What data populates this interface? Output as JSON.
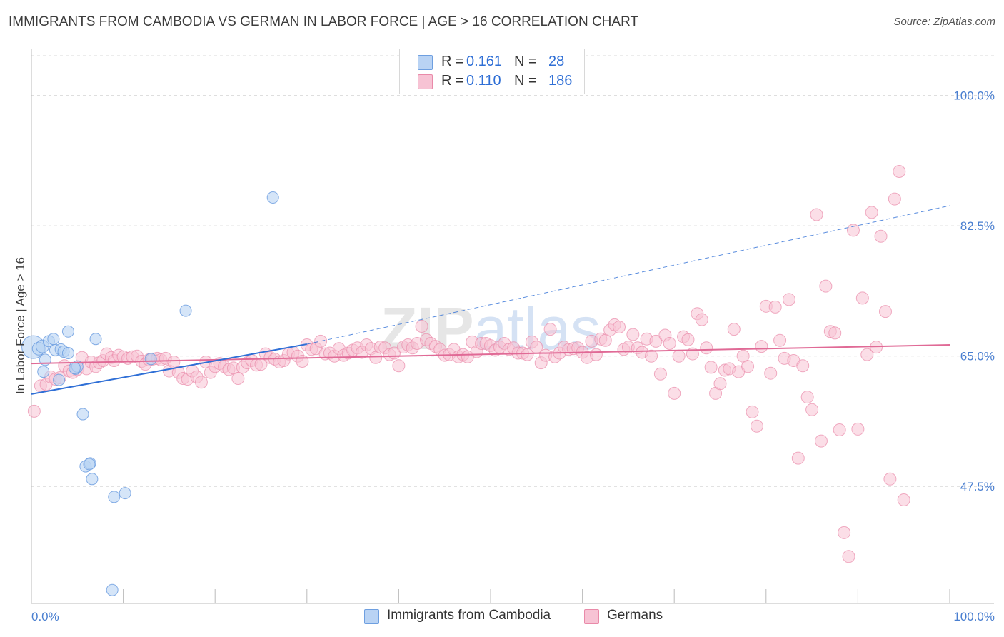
{
  "header": {
    "title": "IMMIGRANTS FROM CAMBODIA VS GERMAN IN LABOR FORCE | AGE > 16 CORRELATION CHART",
    "source": "Source: ZipAtlas.com"
  },
  "legend_top": {
    "rows": [
      {
        "r_label": "R =",
        "r_value": "0.161",
        "n_label": "N =",
        "n_value": "28"
      },
      {
        "r_label": "R =",
        "r_value": "0.110",
        "n_label": "N =",
        "n_value": "186"
      }
    ]
  },
  "legend_bottom": {
    "items": [
      "Immigrants from Cambodia",
      "Germans"
    ]
  },
  "colors": {
    "cambodia_fill": "#b9d3f4",
    "cambodia_stroke": "#6e9fe0",
    "cambodia_line": "#2f6fd6",
    "germans_fill": "#f7c3d4",
    "germans_stroke": "#e98aa9",
    "germans_line": "#e06a96",
    "tick_text": "#4a7fd0",
    "grid": "#d9d9d9"
  },
  "chart_data": {
    "type": "scatter",
    "title": "IMMIGRANTS FROM CAMBODIA VS GERMAN IN LABOR FORCE | AGE > 16 CORRELATION CHART",
    "ylabel": "In Labor Force | Age > 16",
    "xlabel": "",
    "xlim": [
      0,
      100
    ],
    "ylim": [
      31.8,
      106.1
    ],
    "y_ticks": [
      {
        "value": 100.0,
        "label": "100.0%"
      },
      {
        "value": 82.5,
        "label": "82.5%"
      },
      {
        "value": 65.0,
        "label": "65.0%"
      },
      {
        "value": 47.5,
        "label": "47.5%"
      }
    ],
    "x_tick_labels": [
      {
        "value": 0,
        "label": "0.0%"
      },
      {
        "value": 100,
        "label": "100.0%"
      }
    ],
    "grid": true,
    "legend_position": "top-center",
    "watermark": "ZIPatlas",
    "series": [
      {
        "name": "Immigrants from Cambodia",
        "r": 0.161,
        "n": 28,
        "trend": {
          "x0": 0.0,
          "y0": 59.9,
          "x1": 30.0,
          "y1": 66.6,
          "dashed_to_x": 100.0,
          "dashed_to_y": 85.2
        },
        "points": [
          [
            0.2,
            66.2,
            16
          ],
          [
            0.8,
            66.0,
            9
          ],
          [
            1.2,
            66.3,
            9
          ],
          [
            1.5,
            64.5,
            8
          ],
          [
            1.3,
            62.9,
            8
          ],
          [
            1.9,
            67.0,
            8
          ],
          [
            2.4,
            67.3,
            8
          ],
          [
            2.6,
            65.8,
            8
          ],
          [
            3.0,
            61.8,
            8
          ],
          [
            3.2,
            65.9,
            8
          ],
          [
            3.5,
            65.6,
            8
          ],
          [
            4.0,
            65.4,
            8
          ],
          [
            4.0,
            68.3,
            8
          ],
          [
            4.8,
            63.3,
            8
          ],
          [
            5.0,
            63.6,
            8
          ],
          [
            4.7,
            63.4,
            8
          ],
          [
            7.0,
            67.3,
            8
          ],
          [
            5.6,
            57.2,
            8
          ],
          [
            5.9,
            50.2,
            8
          ],
          [
            6.4,
            50.6,
            8
          ],
          [
            6.3,
            50.5,
            8
          ],
          [
            6.6,
            48.5,
            8
          ],
          [
            9.0,
            46.1,
            8
          ],
          [
            10.2,
            46.6,
            8
          ],
          [
            8.8,
            33.6,
            8
          ],
          [
            13.0,
            64.6,
            8
          ],
          [
            16.8,
            71.1,
            8
          ],
          [
            26.3,
            86.3,
            8
          ]
        ]
      },
      {
        "name": "Germans",
        "r": 0.11,
        "n": 186,
        "trend": {
          "x0": 0.0,
          "y0": 64.0,
          "x1": 100.0,
          "y1": 66.5
        },
        "points": [
          [
            0.3,
            57.6
          ],
          [
            1.0,
            61.0
          ],
          [
            1.6,
            61.2
          ],
          [
            2.1,
            62.2
          ],
          [
            2.6,
            61.9
          ],
          [
            3.1,
            62.1
          ],
          [
            3.6,
            63.7
          ],
          [
            4.1,
            63.0
          ],
          [
            4.5,
            62.8
          ],
          [
            5.0,
            63.2
          ],
          [
            5.5,
            64.8
          ],
          [
            6.0,
            63.3
          ],
          [
            6.5,
            64.2
          ],
          [
            7.0,
            63.6
          ],
          [
            7.4,
            64.1
          ],
          [
            7.8,
            64.4
          ],
          [
            8.2,
            65.3
          ],
          [
            8.7,
            64.8
          ],
          [
            9.0,
            64.4
          ],
          [
            9.5,
            65.1
          ],
          [
            10.0,
            64.9
          ],
          [
            10.5,
            64.7
          ],
          [
            11.0,
            64.9
          ],
          [
            11.5,
            65.0
          ],
          [
            12.0,
            64.3
          ],
          [
            12.4,
            63.9
          ],
          [
            12.8,
            64.5
          ],
          [
            13.2,
            64.6
          ],
          [
            13.7,
            64.7
          ],
          [
            14.1,
            64.5
          ],
          [
            14.6,
            64.7
          ],
          [
            15.0,
            63.0
          ],
          [
            15.5,
            64.2
          ],
          [
            16.0,
            62.8
          ],
          [
            16.5,
            62.0
          ],
          [
            17.0,
            61.9
          ],
          [
            17.5,
            63.0
          ],
          [
            18.0,
            62.2
          ],
          [
            18.5,
            61.5
          ],
          [
            19.0,
            64.2
          ],
          [
            19.5,
            62.8
          ],
          [
            20.0,
            63.6
          ],
          [
            20.5,
            64.0
          ],
          [
            21.0,
            63.6
          ],
          [
            21.5,
            63.2
          ],
          [
            22.0,
            63.4
          ],
          [
            22.5,
            62.0
          ],
          [
            23.0,
            63.5
          ],
          [
            23.5,
            64.1
          ],
          [
            24.0,
            64.4
          ],
          [
            24.5,
            63.8
          ],
          [
            25.0,
            63.9
          ],
          [
            25.5,
            65.3
          ],
          [
            26.0,
            64.8
          ],
          [
            26.5,
            64.6
          ],
          [
            27.0,
            64.2
          ],
          [
            27.5,
            64.4
          ],
          [
            28.0,
            65.3
          ],
          [
            28.5,
            65.5
          ],
          [
            29.0,
            65.0
          ],
          [
            29.5,
            64.3
          ],
          [
            30.0,
            66.5
          ],
          [
            30.5,
            65.9
          ],
          [
            31.0,
            66.0
          ],
          [
            31.5,
            67.0
          ],
          [
            32.0,
            65.3
          ],
          [
            32.5,
            65.4
          ],
          [
            33.0,
            65.0
          ],
          [
            33.5,
            66.0
          ],
          [
            34.0,
            65.1
          ],
          [
            34.5,
            65.4
          ],
          [
            35.0,
            65.8
          ],
          [
            35.5,
            66.1
          ],
          [
            36.0,
            65.5
          ],
          [
            36.5,
            66.5
          ],
          [
            37.0,
            66.0
          ],
          [
            37.5,
            64.8
          ],
          [
            38.0,
            66.2
          ],
          [
            38.5,
            66.1
          ],
          [
            39.0,
            65.2
          ],
          [
            39.5,
            65.4
          ],
          [
            40.0,
            63.7
          ],
          [
            40.5,
            66.2
          ],
          [
            41.0,
            66.5
          ],
          [
            41.5,
            66.1
          ],
          [
            42.0,
            66.7
          ],
          [
            42.5,
            69.0
          ],
          [
            43.0,
            67.2
          ],
          [
            43.5,
            66.7
          ],
          [
            44.0,
            66.3
          ],
          [
            44.5,
            65.9
          ],
          [
            45.0,
            65.1
          ],
          [
            45.5,
            65.2
          ],
          [
            46.0,
            65.9
          ],
          [
            46.5,
            64.9
          ],
          [
            47.0,
            65.2
          ],
          [
            47.5,
            64.9
          ],
          [
            48.0,
            66.9
          ],
          [
            48.5,
            65.6
          ],
          [
            49.0,
            66.7
          ],
          [
            49.5,
            66.7
          ],
          [
            50.0,
            66.4
          ],
          [
            50.5,
            65.8
          ],
          [
            51.0,
            66.2
          ],
          [
            51.5,
            66.7
          ],
          [
            52.0,
            65.9
          ],
          [
            52.5,
            66.1
          ],
          [
            53.0,
            65.4
          ],
          [
            53.5,
            65.4
          ],
          [
            54.0,
            65.2
          ],
          [
            54.5,
            66.9
          ],
          [
            55.0,
            66.2
          ],
          [
            55.5,
            64.1
          ],
          [
            56.0,
            65.1
          ],
          [
            56.5,
            68.6
          ],
          [
            57.0,
            64.9
          ],
          [
            57.5,
            65.4
          ],
          [
            58.0,
            66.2
          ],
          [
            58.5,
            65.9
          ],
          [
            59.0,
            66.0
          ],
          [
            59.5,
            66.1
          ],
          [
            60.0,
            65.5
          ],
          [
            60.5,
            64.8
          ],
          [
            61.0,
            67.0
          ],
          [
            61.5,
            65.2
          ],
          [
            62.0,
            67.3
          ],
          [
            62.5,
            67.1
          ],
          [
            63.0,
            68.5
          ],
          [
            63.5,
            69.2
          ],
          [
            64.0,
            68.9
          ],
          [
            64.5,
            65.9
          ],
          [
            65.0,
            66.2
          ],
          [
            65.5,
            67.9
          ],
          [
            66.0,
            66.1
          ],
          [
            66.5,
            65.5
          ],
          [
            67.0,
            67.3
          ],
          [
            67.5,
            65.0
          ],
          [
            68.0,
            67.0
          ],
          [
            68.5,
            62.6
          ],
          [
            69.0,
            67.8
          ],
          [
            69.5,
            66.7
          ],
          [
            70.0,
            60.0
          ],
          [
            70.5,
            65.0
          ],
          [
            71.0,
            67.6
          ],
          [
            71.5,
            67.2
          ],
          [
            72.0,
            65.3
          ],
          [
            72.5,
            70.7
          ],
          [
            73.0,
            69.9
          ],
          [
            73.5,
            66.1
          ],
          [
            74.0,
            63.5
          ],
          [
            74.5,
            60.0
          ],
          [
            75.0,
            61.3
          ],
          [
            75.5,
            63.1
          ],
          [
            76.0,
            63.3
          ],
          [
            76.5,
            68.6
          ],
          [
            77.0,
            62.9
          ],
          [
            77.5,
            65.0
          ],
          [
            78.0,
            63.6
          ],
          [
            78.5,
            57.5
          ],
          [
            79.0,
            55.6
          ],
          [
            79.5,
            66.3
          ],
          [
            80.0,
            71.7
          ],
          [
            80.5,
            62.7
          ],
          [
            81.0,
            71.6
          ],
          [
            81.5,
            67.1
          ],
          [
            82.0,
            64.7
          ],
          [
            82.5,
            72.6
          ],
          [
            83.0,
            64.4
          ],
          [
            83.5,
            51.3
          ],
          [
            84.0,
            63.7
          ],
          [
            84.5,
            59.5
          ],
          [
            85.0,
            57.8
          ],
          [
            85.5,
            84.0
          ],
          [
            86.0,
            53.6
          ],
          [
            86.5,
            74.4
          ],
          [
            87.0,
            68.3
          ],
          [
            87.5,
            68.1
          ],
          [
            88.0,
            55.1
          ],
          [
            88.5,
            41.3
          ],
          [
            89.0,
            38.1
          ],
          [
            89.5,
            81.9
          ],
          [
            90.0,
            55.2
          ],
          [
            90.5,
            72.8
          ],
          [
            91.0,
            65.2
          ],
          [
            91.5,
            84.3
          ],
          [
            92.0,
            66.2
          ],
          [
            92.5,
            81.1
          ],
          [
            93.0,
            71.0
          ],
          [
            93.5,
            48.5
          ],
          [
            94.0,
            86.1
          ],
          [
            94.5,
            89.8
          ],
          [
            95.0,
            45.7
          ]
        ]
      }
    ]
  }
}
